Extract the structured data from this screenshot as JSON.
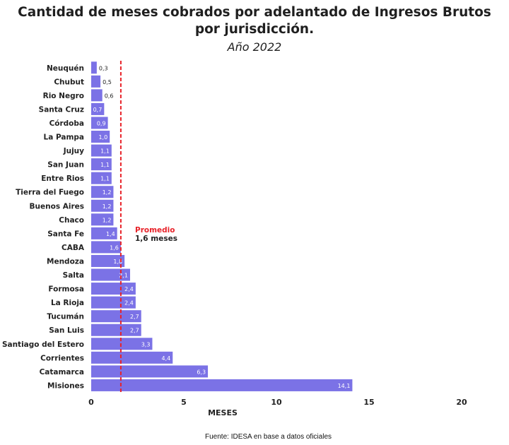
{
  "chart_data": {
    "type": "bar",
    "orientation": "horizontal",
    "title": "Cantidad de meses cobrados por adelantado de Ingresos Brutos por jurisdicción.",
    "subtitle": "Año 2022",
    "xlabel": "MESES",
    "ylabel": "",
    "xlim": [
      0,
      20
    ],
    "xticks": [
      0,
      5,
      10,
      15,
      20
    ],
    "grid": false,
    "categories": [
      "Neuquén",
      "Chubut",
      "Rio Negro",
      "Santa Cruz",
      "Córdoba",
      "La Pampa",
      "Jujuy",
      "San Juan",
      "Entre Rios",
      "Tierra del Fuego",
      "Buenos Aires",
      "Chaco",
      "Santa Fe",
      "CABA",
      "Mendoza",
      "Salta",
      "Formosa",
      "La Rioja",
      "Tucumán",
      "San Luis",
      "Santiago del Estero",
      "Corrientes",
      "Catamarca",
      "Misiones"
    ],
    "values": [
      0.3,
      0.5,
      0.6,
      0.7,
      0.9,
      1.0,
      1.1,
      1.1,
      1.1,
      1.2,
      1.2,
      1.2,
      1.4,
      1.6,
      1.8,
      2.1,
      2.4,
      2.4,
      2.7,
      2.7,
      3.3,
      4.4,
      6.3,
      14.1
    ],
    "value_labels": [
      "0,3",
      "0,5",
      "0,6",
      "0,7",
      "0,9",
      "1,0",
      "1,1",
      "1,1",
      "1,1",
      "1,2",
      "1,2",
      "1,2",
      "1,4",
      "1,6",
      "1,8",
      "2,1",
      "2,4",
      "2,4",
      "2,7",
      "2,7",
      "3,3",
      "4,4",
      "6,3",
      "14,1"
    ],
    "reference_line": {
      "value": 1.6,
      "label": "Promedio",
      "sublabel": "1,6 meses",
      "color": "#e8232a"
    },
    "bar_color": "#7b72e6"
  },
  "source": "Fuente: IDESA en base a datos oficiales"
}
